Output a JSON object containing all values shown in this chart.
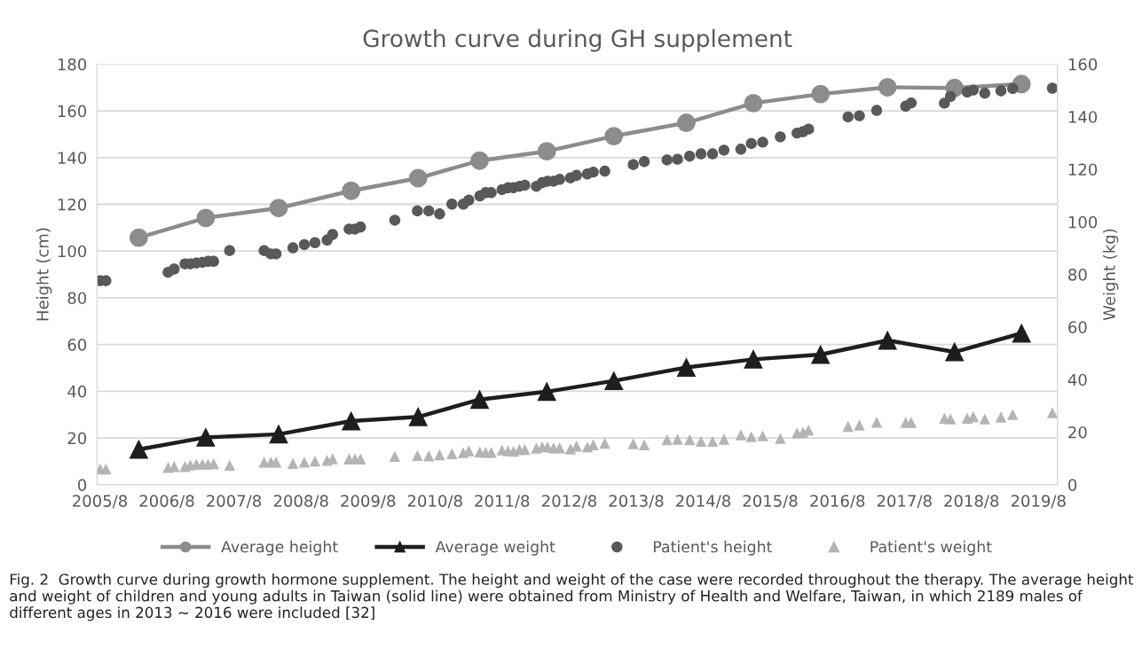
{
  "chart_data": {
    "type": "line",
    "title": "Growth curve during GH supplement",
    "ylabel": "Height (cm)",
    "y2label": "Weight (kg)",
    "xlim": [
      "2005-07-17",
      "2019-11-13"
    ],
    "xticks": [
      {
        "value": "2005-08",
        "label": "2005/8"
      },
      {
        "value": "2006-08",
        "label": "2006/8"
      },
      {
        "value": "2007-08",
        "label": "2007/8"
      },
      {
        "value": "2008-08",
        "label": "2008/8"
      },
      {
        "value": "2009-08",
        "label": "2009/8"
      },
      {
        "value": "2010-08",
        "label": "2010/8"
      },
      {
        "value": "2011-08",
        "label": "2011/8"
      },
      {
        "value": "2012-08",
        "label": "2012/8"
      },
      {
        "value": "2013-08",
        "label": "2013/8"
      },
      {
        "value": "2014-08",
        "label": "2014/8"
      },
      {
        "value": "2015-08",
        "label": "2015/8"
      },
      {
        "value": "2016-08",
        "label": "2016/8"
      },
      {
        "value": "2017-08",
        "label": "2017/8"
      },
      {
        "value": "2018-08",
        "label": "2018/8"
      },
      {
        "value": "2019-08",
        "label": "2019/8"
      }
    ],
    "ylim": [
      0,
      180
    ],
    "yticks": [
      0,
      20,
      40,
      60,
      80,
      100,
      120,
      140,
      160,
      180
    ],
    "y2lim": [
      0,
      160
    ],
    "y2ticks": [
      0,
      20,
      40,
      60,
      80,
      100,
      120,
      140,
      160
    ],
    "grid": "y",
    "legend": "bottom",
    "series": [
      {
        "name": "Average height",
        "marker": "circle",
        "color": "#8c8c8c",
        "x": [
          "2006-03",
          "2007-03",
          "2008-04",
          "2009-05",
          "2010-05",
          "2011-04",
          "2012-04",
          "2013-04",
          "2014-05",
          "2015-05",
          "2016-05",
          "2017-05",
          "2018-05",
          "2019-05"
        ],
        "values": [
          105.7,
          114.2,
          118.4,
          125.8,
          131.2,
          138.7,
          142.7,
          149.2,
          154.9,
          163.3,
          167.2,
          170.1,
          169.8,
          171.5
        ]
      },
      {
        "name": "Average weight",
        "marker": "triangle",
        "axis": "y2",
        "color": "#1e1e1e",
        "x": [
          "2006-03",
          "2007-03",
          "2008-04",
          "2009-05",
          "2010-05",
          "2011-04",
          "2012-04",
          "2013-04",
          "2014-05",
          "2015-05",
          "2016-05",
          "2017-05",
          "2018-05",
          "2019-05"
        ],
        "values": [
          13.4,
          18.0,
          19.2,
          24.2,
          25.8,
          32.4,
          35.4,
          39.5,
          44.6,
          47.7,
          49.5,
          54.9,
          50.5,
          57.6
        ]
      },
      {
        "name": "Patient's height",
        "type": "scatter",
        "marker": "circle",
        "color": "#595959",
        "x": [
          "2005-08-03",
          "2005-09-03",
          "2006-08-08",
          "2006-09-10",
          "2006-11-08",
          "2006-12-07",
          "2007-01-09",
          "2007-02-11",
          "2007-03-14",
          "2007-04-13",
          "2007-07-09",
          "2008-01-13",
          "2008-02-19",
          "2008-03-18",
          "2008-06-18",
          "2008-08-19",
          "2008-10-16",
          "2008-12-21",
          "2009-01-20",
          "2009-04-20",
          "2009-05-22",
          "2009-06-21",
          "2009-12-25",
          "2010-04-27",
          "2010-06-28",
          "2010-08-26",
          "2010-11-01",
          "2011-01-02",
          "2011-02-01",
          "2011-04-02",
          "2011-05-04",
          "2011-06-03",
          "2011-08-01",
          "2011-09-03",
          "2011-10-02",
          "2011-11-04",
          "2011-12-03",
          "2012-02-04",
          "2012-03-07",
          "2012-04-05",
          "2012-05-08",
          "2012-06-10",
          "2012-08-08",
          "2012-09-10",
          "2012-11-08",
          "2012-12-10",
          "2013-02-11",
          "2013-07-16",
          "2013-09-14",
          "2014-01-16",
          "2014-03-14",
          "2014-05-19",
          "2014-07-20",
          "2014-09-21",
          "2014-11-22",
          "2015-02-22",
          "2015-04-20",
          "2015-06-21",
          "2015-09-25",
          "2015-12-25",
          "2016-01-27",
          "2016-02-26",
          "2016-09-28",
          "2016-11-29",
          "2017-03-03",
          "2017-08-08",
          "2017-09-07",
          "2018-03-07",
          "2018-04-09",
          "2018-07-09",
          "2018-08-11",
          "2018-10-13",
          "2019-01-09",
          "2019-03-14",
          "2019-10-16"
        ],
        "values": [
          87.3,
          87.3,
          90.9,
          92.3,
          94.5,
          94.5,
          94.9,
          95.2,
          95.6,
          95.6,
          100.2,
          100.2,
          98.8,
          98.8,
          101.4,
          102.8,
          103.6,
          104.7,
          107.1,
          109.4,
          109.4,
          110.3,
          113.2,
          117.2,
          117.2,
          115.9,
          120.1,
          120.1,
          121.8,
          123.6,
          125.0,
          125.0,
          126.3,
          127.1,
          127.1,
          127.7,
          128.2,
          127.7,
          129.3,
          129.9,
          129.9,
          130.7,
          131.3,
          132.4,
          133.0,
          133.8,
          134.2,
          137.0,
          138.3,
          139.0,
          139.3,
          140.6,
          141.6,
          141.6,
          143.2,
          143.6,
          146.0,
          146.6,
          148.9,
          150.5,
          151.1,
          152.2,
          157.4,
          157.9,
          160.2,
          162.0,
          163.4,
          163.3,
          166.2,
          168.1,
          168.9,
          167.6,
          168.6,
          169.6,
          169.7
        ]
      },
      {
        "name": "Patient's weight",
        "type": "scatter",
        "marker": "triangle",
        "axis": "y2",
        "color": "#b4b4b4",
        "x": [
          "2005-08-03",
          "2005-09-03",
          "2006-08-08",
          "2006-09-10",
          "2006-11-08",
          "2006-12-07",
          "2007-01-09",
          "2007-02-11",
          "2007-03-14",
          "2007-04-13",
          "2007-07-09",
          "2008-01-13",
          "2008-02-19",
          "2008-03-18",
          "2008-06-18",
          "2008-08-19",
          "2008-10-16",
          "2008-12-21",
          "2009-01-20",
          "2009-04-20",
          "2009-05-22",
          "2009-06-21",
          "2009-12-25",
          "2010-04-27",
          "2010-06-28",
          "2010-08-26",
          "2010-11-01",
          "2011-01-02",
          "2011-02-01",
          "2011-04-02",
          "2011-05-04",
          "2011-06-03",
          "2011-08-01",
          "2011-09-03",
          "2011-10-02",
          "2011-11-04",
          "2011-12-03",
          "2012-02-04",
          "2012-03-07",
          "2012-04-05",
          "2012-05-08",
          "2012-06-10",
          "2012-08-08",
          "2012-09-10",
          "2012-11-08",
          "2012-12-10",
          "2013-02-11",
          "2013-07-16",
          "2013-09-14",
          "2014-01-16",
          "2014-03-14",
          "2014-05-19",
          "2014-07-20",
          "2014-09-21",
          "2014-11-22",
          "2015-02-22",
          "2015-04-20",
          "2015-06-21",
          "2015-09-25",
          "2015-12-25",
          "2016-01-27",
          "2016-02-26",
          "2016-09-28",
          "2016-11-29",
          "2017-03-03",
          "2017-08-08",
          "2017-09-07",
          "2018-03-07",
          "2018-04-09",
          "2018-07-09",
          "2018-08-11",
          "2018-10-13",
          "2019-01-09",
          "2019-03-14",
          "2019-10-16"
        ],
        "values": [
          6.0,
          6.0,
          6.6,
          6.9,
          6.9,
          7.5,
          7.8,
          7.8,
          7.8,
          8.0,
          7.4,
          8.6,
          8.6,
          8.6,
          8.1,
          8.6,
          9.0,
          9.3,
          9.9,
          9.8,
          9.8,
          9.8,
          10.8,
          11.1,
          11.0,
          11.4,
          11.8,
          12.2,
          12.9,
          12.5,
          12.3,
          12.3,
          13.2,
          12.9,
          12.7,
          13.4,
          13.4,
          13.9,
          14.4,
          14.4,
          14.0,
          14.0,
          13.6,
          14.7,
          14.4,
          15.2,
          15.8,
          15.6,
          15.2,
          17.1,
          17.3,
          17.1,
          16.5,
          16.5,
          17.3,
          19.0,
          18.3,
          18.6,
          17.6,
          19.7,
          19.9,
          20.8,
          22.2,
          22.7,
          23.8,
          23.7,
          23.7,
          25.3,
          25.0,
          25.3,
          25.9,
          25.0,
          25.7,
          26.7,
          27.4
        ]
      }
    ],
    "annotations": [
      "Fig. 2  Growth curve during growth hormone supplement. The height and weight of the case were recorded throughout the therapy. The average height and weight of children and young adults in Taiwan (solid line) were obtained from Ministry of Health and Welfare, Taiwan, in which 2189 males of different ages in 2013 ~ 2016 were included [32]"
    ]
  }
}
